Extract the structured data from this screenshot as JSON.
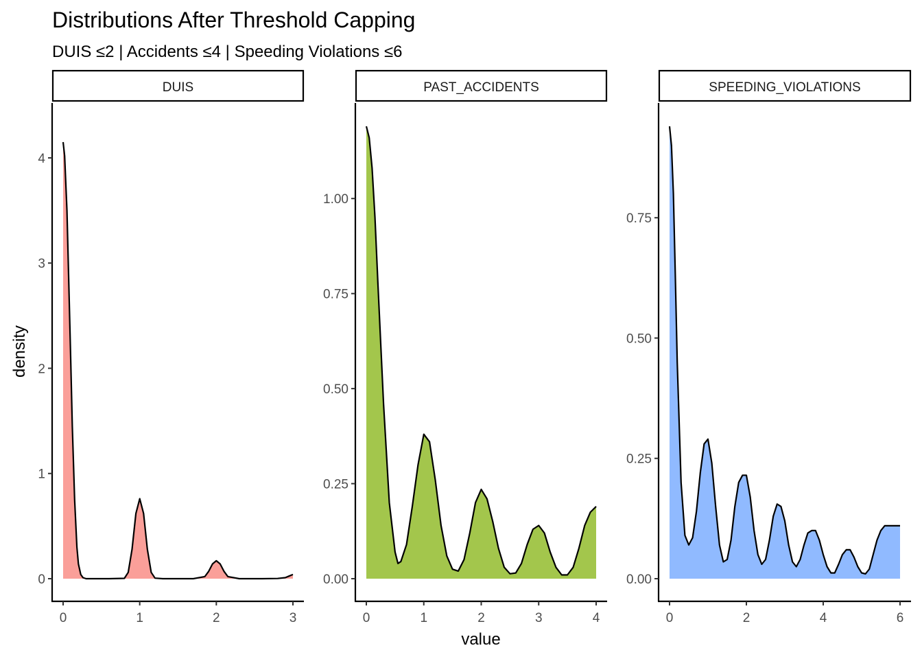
{
  "chart_data": {
    "type": "area",
    "title": "Distributions After Threshold Capping",
    "subtitle": "DUIS ≤2 | Accidents ≤4 | Speeding Violations ≤6",
    "xlabel": "value",
    "ylabel": "density",
    "legend": "none",
    "grid": false,
    "facets": [
      {
        "name": "DUIS",
        "color": "#f8766d",
        "xlim": [
          0,
          3
        ],
        "ylim": [
          0,
          4.3
        ],
        "x_ticks": [
          0,
          1,
          2,
          3
        ],
        "y_ticks": [
          0,
          1,
          2,
          3,
          4
        ],
        "y_tick_labels": [
          "0",
          "1",
          "2",
          "3",
          "4"
        ],
        "x": [
          0,
          0.02,
          0.05,
          0.08,
          0.1,
          0.12,
          0.15,
          0.18,
          0.2,
          0.23,
          0.26,
          0.3,
          0.4,
          0.6,
          0.8,
          0.85,
          0.9,
          0.95,
          1.0,
          1.05,
          1.1,
          1.15,
          1.2,
          1.3,
          1.5,
          1.7,
          1.85,
          1.9,
          1.95,
          2.0,
          2.05,
          2.1,
          2.15,
          2.3,
          2.6,
          2.8,
          2.9,
          2.95,
          3.0
        ],
        "y": [
          4.15,
          4.02,
          3.5,
          2.65,
          2.05,
          1.45,
          0.75,
          0.3,
          0.14,
          0.04,
          0.01,
          0.0,
          0.0,
          0.0,
          0.003,
          0.06,
          0.28,
          0.62,
          0.76,
          0.62,
          0.28,
          0.06,
          0.005,
          0.0,
          0.0,
          0.0,
          0.02,
          0.07,
          0.14,
          0.17,
          0.14,
          0.07,
          0.02,
          0.0,
          0.0,
          0.002,
          0.01,
          0.025,
          0.04
        ]
      },
      {
        "name": "PAST_ACCIDENTS",
        "color": "#7cae00",
        "xlim": [
          0,
          4
        ],
        "ylim": [
          0,
          1.19
        ],
        "x_ticks": [
          0,
          1,
          2,
          3,
          4
        ],
        "y_ticks": [
          0,
          0.25,
          0.5,
          0.75,
          1.0
        ],
        "y_tick_labels": [
          "0.00",
          "0.25",
          "0.50",
          "0.75",
          "1.00"
        ],
        "x": [
          0,
          0.05,
          0.1,
          0.15,
          0.2,
          0.3,
          0.4,
          0.5,
          0.55,
          0.6,
          0.7,
          0.8,
          0.9,
          1.0,
          1.1,
          1.2,
          1.3,
          1.4,
          1.5,
          1.6,
          1.7,
          1.8,
          1.9,
          2.0,
          2.1,
          2.2,
          2.3,
          2.4,
          2.5,
          2.6,
          2.7,
          2.8,
          2.9,
          3.0,
          3.1,
          3.2,
          3.3,
          3.4,
          3.5,
          3.6,
          3.7,
          3.8,
          3.9,
          4.0
        ],
        "y": [
          1.19,
          1.16,
          1.08,
          0.95,
          0.78,
          0.46,
          0.2,
          0.07,
          0.04,
          0.045,
          0.09,
          0.19,
          0.3,
          0.38,
          0.36,
          0.26,
          0.14,
          0.06,
          0.025,
          0.02,
          0.05,
          0.12,
          0.2,
          0.235,
          0.21,
          0.15,
          0.08,
          0.03,
          0.013,
          0.015,
          0.04,
          0.09,
          0.13,
          0.14,
          0.12,
          0.07,
          0.03,
          0.01,
          0.01,
          0.03,
          0.08,
          0.14,
          0.175,
          0.19
        ]
      },
      {
        "name": "SPEEDING_VIOLATIONS",
        "color": "#619cff",
        "xlim": [
          0,
          6
        ],
        "ylim": [
          0,
          0.94
        ],
        "x_ticks": [
          0,
          2,
          4,
          6
        ],
        "y_ticks": [
          0,
          0.25,
          0.5,
          0.75
        ],
        "y_tick_labels": [
          "0.00",
          "0.25",
          "0.50",
          "0.75"
        ],
        "x": [
          0,
          0.05,
          0.1,
          0.15,
          0.2,
          0.3,
          0.4,
          0.5,
          0.6,
          0.7,
          0.8,
          0.9,
          1.0,
          1.1,
          1.2,
          1.3,
          1.4,
          1.5,
          1.6,
          1.7,
          1.8,
          1.9,
          2.0,
          2.1,
          2.2,
          2.3,
          2.4,
          2.5,
          2.6,
          2.7,
          2.8,
          2.9,
          3.0,
          3.1,
          3.2,
          3.3,
          3.4,
          3.5,
          3.6,
          3.7,
          3.8,
          3.9,
          4.0,
          4.1,
          4.2,
          4.3,
          4.4,
          4.5,
          4.6,
          4.7,
          4.8,
          4.9,
          5.0,
          5.1,
          5.2,
          5.3,
          5.4,
          5.5,
          5.6,
          5.7,
          5.8,
          5.9,
          6.0
        ],
        "y": [
          0.94,
          0.9,
          0.8,
          0.63,
          0.45,
          0.2,
          0.09,
          0.07,
          0.085,
          0.14,
          0.22,
          0.28,
          0.29,
          0.24,
          0.15,
          0.07,
          0.035,
          0.04,
          0.08,
          0.15,
          0.2,
          0.215,
          0.215,
          0.17,
          0.1,
          0.05,
          0.03,
          0.04,
          0.08,
          0.13,
          0.155,
          0.15,
          0.12,
          0.07,
          0.035,
          0.025,
          0.04,
          0.07,
          0.095,
          0.1,
          0.1,
          0.08,
          0.05,
          0.025,
          0.012,
          0.012,
          0.03,
          0.05,
          0.06,
          0.06,
          0.045,
          0.025,
          0.012,
          0.01,
          0.02,
          0.05,
          0.08,
          0.1,
          0.11,
          0.11,
          0.11,
          0.11,
          0.11
        ]
      }
    ]
  }
}
